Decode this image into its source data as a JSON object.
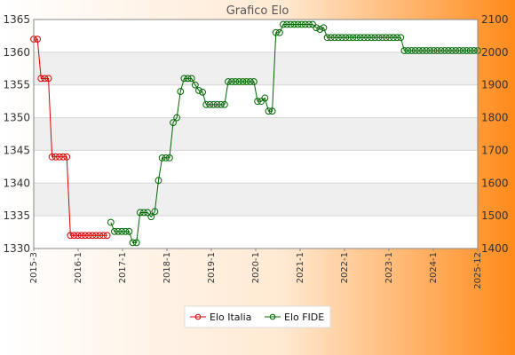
{
  "chart_data": {
    "type": "line",
    "title": "Grafico Elo",
    "left_axis": {
      "ylim": [
        1330,
        1365
      ],
      "ticks": [
        1330,
        1335,
        1340,
        1345,
        1350,
        1355,
        1360,
        1365
      ]
    },
    "right_axis": {
      "ylim": [
        1400,
        2100
      ],
      "ticks": [
        1400,
        1500,
        1600,
        1700,
        1800,
        1900,
        2000,
        2100
      ]
    },
    "x_labels": [
      "2015-3",
      "2016-1",
      "2017-1",
      "2018-1",
      "2019-1",
      "2020-1",
      "2021-1",
      "2022-1",
      "2023-1",
      "2024-1",
      "2025-12"
    ],
    "grid": true,
    "legend": {
      "position": "bottom",
      "entries": [
        "Elo Italia",
        "Elo FIDE"
      ]
    },
    "series": [
      {
        "name": "Elo Italia",
        "axis": "left",
        "color": "#dd0000",
        "values": [
          1362,
          1362,
          1356,
          1356,
          1356,
          1344,
          1344,
          1344,
          1344,
          1344,
          1332,
          1332,
          1332,
          1332,
          1332,
          1332,
          1332,
          1332,
          1332,
          1332,
          1332
        ]
      },
      {
        "name": "Elo FIDE",
        "axis": "right",
        "color": "#006600",
        "start_index": 21,
        "values": [
          1480,
          1452,
          1452,
          1452,
          1452,
          1452,
          1418,
          1418,
          1510,
          1510,
          1510,
          1497,
          1513,
          1608,
          1677,
          1677,
          1677,
          1785,
          1800,
          1880,
          1920,
          1920,
          1920,
          1900,
          1883,
          1878,
          1840,
          1840,
          1840,
          1840,
          1840,
          1840,
          1910,
          1910,
          1910,
          1910,
          1910,
          1910,
          1910,
          1910,
          1850,
          1850,
          1860,
          1820,
          1820,
          2060,
          2060,
          2085,
          2085,
          2085,
          2085,
          2085,
          2085,
          2085,
          2085,
          2085,
          2075,
          2070,
          2075,
          2045,
          2045,
          2045,
          2045,
          2045,
          2045,
          2045,
          2045,
          2045,
          2045,
          2045,
          2045,
          2045,
          2045,
          2045,
          2045,
          2045,
          2045,
          2045,
          2045,
          2045,
          2005,
          2005,
          2005,
          2005,
          2005,
          2005,
          2005,
          2005,
          2005,
          2005,
          2005,
          2005,
          2005,
          2005,
          2005,
          2005,
          2005,
          2005,
          2005,
          2005,
          2005
        ]
      }
    ]
  }
}
